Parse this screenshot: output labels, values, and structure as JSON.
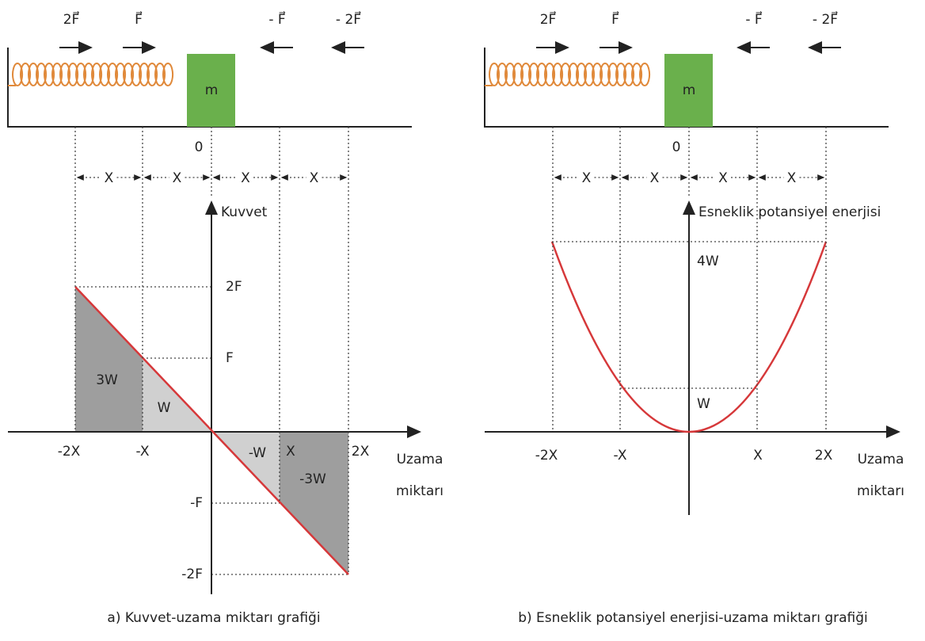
{
  "panels": [
    {
      "forces": [
        "2F⃗",
        "F⃗",
        "- F⃗",
        "- 2F⃗"
      ],
      "block": "m",
      "origin": "0",
      "spacing": [
        "X",
        "X",
        "X",
        "X"
      ],
      "y_axis_label": "Kuvvet",
      "y_ticks": [
        "2F",
        "F",
        "-F",
        "-2F"
      ],
      "areas": [
        "3W",
        "W",
        "-W",
        "-3W"
      ],
      "x_ticks": [
        "-2X",
        "-X",
        "X",
        "2X"
      ],
      "x_axis_label": [
        "Uzama",
        "miktarı"
      ],
      "caption": "a) Kuvvet-uzama miktarı grafiği"
    },
    {
      "forces": [
        "2F⃗",
        "F⃗",
        "- F⃗",
        "- 2F⃗"
      ],
      "block": "m",
      "origin": "0",
      "spacing": [
        "X",
        "X",
        "X",
        "X"
      ],
      "y_axis_label": "Esneklik potansiyel enerjisi",
      "y_ticks": [
        "4W",
        "W"
      ],
      "x_ticks": [
        "-2X",
        "-X",
        "X",
        "2X"
      ],
      "x_axis_label": [
        "Uzama",
        "miktarı"
      ],
      "caption": "b) Esneklik potansiyel enerjisi-uzama miktarı grafiği"
    }
  ]
}
